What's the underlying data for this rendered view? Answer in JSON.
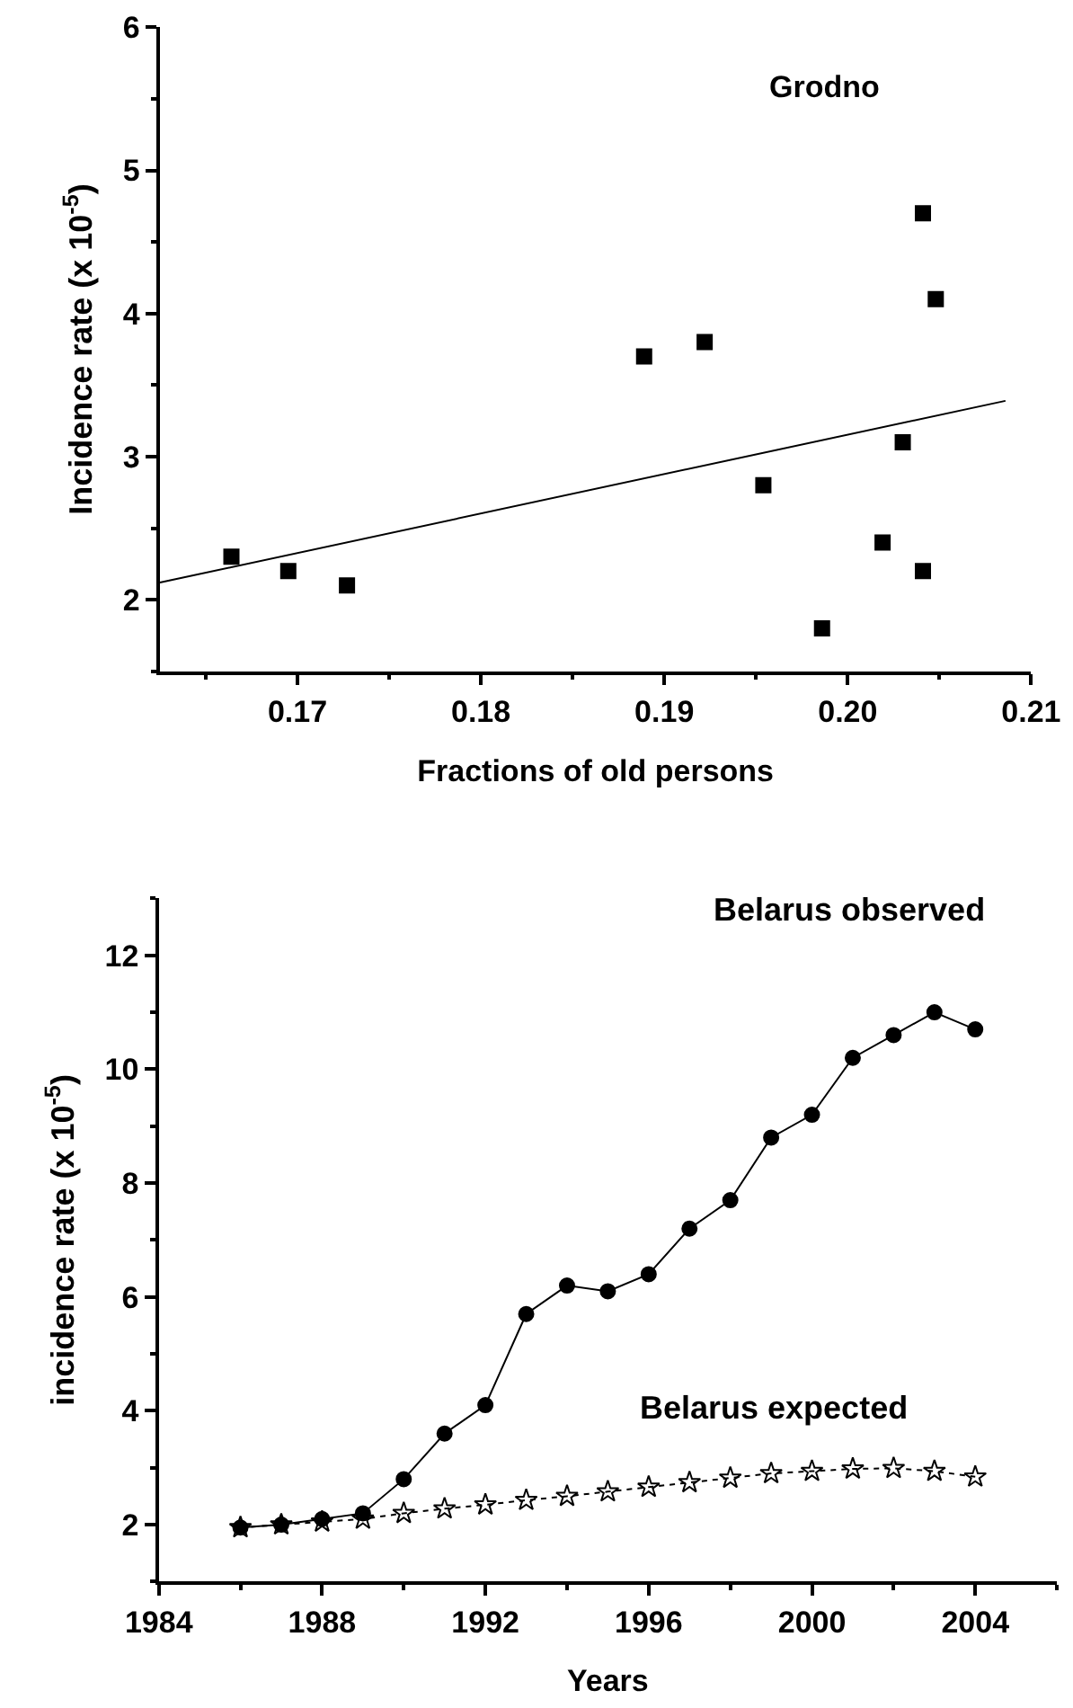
{
  "chart_data": [
    {
      "type": "scatter",
      "title": "Grodno",
      "xlabel": "Fractions of old persons",
      "ylabel": "Incidence rate (x 10$^{-5}$)",
      "xlim": [
        0.1625,
        0.21
      ],
      "xticks": [
        0.17,
        0.18,
        0.19,
        {
          "value": 0.2,
          "label": "0.20"
        },
        0.21
      ],
      "ylim": [
        1.5,
        6
      ],
      "yticks": [
        2,
        3,
        4,
        5,
        6
      ],
      "series": [
        {
          "type": "scatter",
          "color": "#000000",
          "marker": "square",
          "x": [
            0.1664,
            0.1695,
            0.1727,
            0.1889,
            0.1922,
            0.1954,
            0.1986,
            0.2019,
            0.203,
            0.2041,
            0.2041,
            0.2048
          ],
          "values": [
            2.3,
            2.2,
            2.1,
            3.7,
            3.8,
            2.8,
            1.8,
            2.4,
            3.1,
            4.7,
            2.2,
            4.1
          ]
        },
        {
          "type": "line",
          "color": "#000000",
          "marker": "none",
          "line_style": "solid",
          "x": [
            0.1625,
            0.2086
          ],
          "values": [
            2.12,
            3.39
          ]
        }
      ]
    },
    {
      "type": "line",
      "xlabel": "Years",
      "ylabel": "incidence rate (x 10$^{-5}$)",
      "x": [
        1986,
        1987,
        1988,
        1989,
        1990,
        1991,
        1992,
        1993,
        1994,
        1995,
        1996,
        1997,
        1998,
        1999,
        2000,
        2001,
        2002,
        2003,
        2004
      ],
      "xlim": [
        1984,
        2006
      ],
      "xticks": [
        1984,
        1988,
        1992,
        1996,
        2000,
        2004
      ],
      "ylim": [
        1,
        13
      ],
      "yticks": [
        2,
        4,
        6,
        8,
        10,
        12
      ],
      "series": [
        {
          "name": "Belarus observed",
          "color": "#000000",
          "marker": "circle",
          "line_style": "solid",
          "values": [
            1.95,
            2.0,
            2.1,
            2.2,
            2.8,
            3.6,
            4.1,
            5.7,
            6.2,
            6.1,
            6.4,
            7.2,
            7.7,
            8.8,
            9.2,
            10.2,
            10.6,
            11.0,
            10.7
          ]
        },
        {
          "name": "Belarus expected",
          "color": "#000000",
          "marker": "star",
          "line_style": "dotted",
          "values": [
            1.95,
            2.0,
            2.05,
            2.1,
            2.2,
            2.28,
            2.35,
            2.43,
            2.5,
            2.58,
            2.66,
            2.74,
            2.82,
            2.9,
            2.94,
            2.98,
            2.99,
            2.94,
            2.84
          ]
        }
      ]
    }
  ]
}
